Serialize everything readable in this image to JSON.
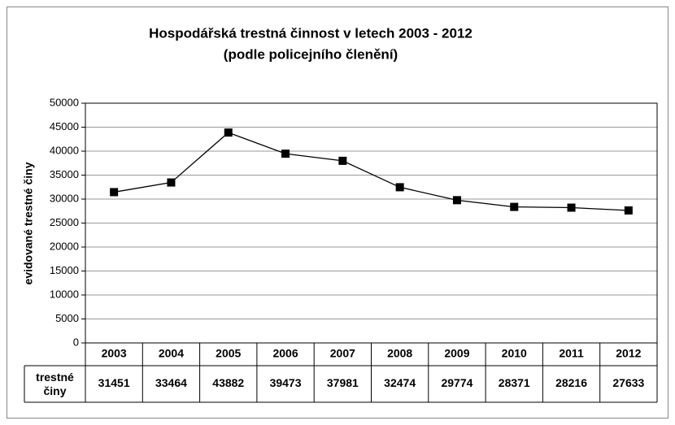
{
  "chart_data": {
    "type": "line",
    "title": [
      "Hospodářská trestná činnost v letech 2003 - 2012",
      "(podle policejního členění)"
    ],
    "y_label": "evidované trestné činy",
    "categories": [
      "2003",
      "2004",
      "2005",
      "2006",
      "2007",
      "2008",
      "2009",
      "2010",
      "2011",
      "2012"
    ],
    "series": [
      {
        "name": "trestné činy",
        "color": "#000000",
        "values": [
          31451,
          33464,
          43882,
          39473,
          37981,
          32474,
          29774,
          28371,
          28216,
          27633
        ]
      }
    ],
    "ylim": [
      0,
      50000
    ],
    "yticks": [
      0,
      5000,
      10000,
      15000,
      20000,
      25000,
      30000,
      35000,
      40000,
      45000,
      50000
    ],
    "grid": true
  }
}
